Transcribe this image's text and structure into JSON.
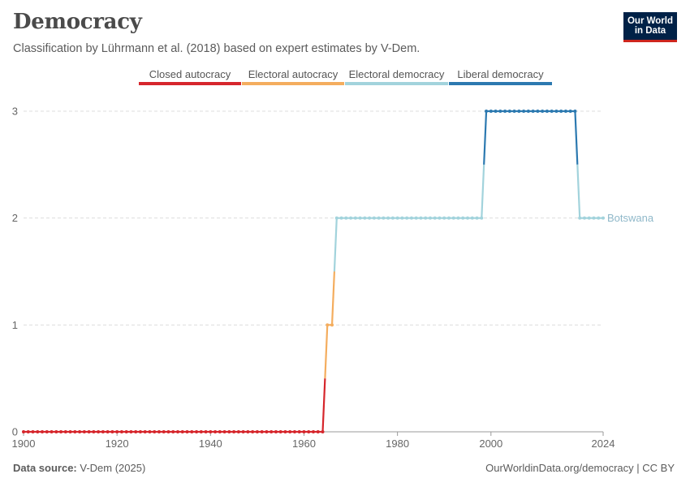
{
  "header": {
    "title": "Democracy",
    "subtitle": "Classification by Lührmann et al. (2018) based on expert estimates by V-Dem.",
    "logo_line1": "Our World",
    "logo_line2": "in Data"
  },
  "footer": {
    "source_label": "Data source:",
    "source_value": "V-Dem (2025)",
    "credit": "OurWorldinData.org/democracy | CC BY"
  },
  "colors": {
    "closed_autocracy": "#d6262c",
    "electoral_autocracy": "#f4ad5e",
    "electoral_democracy": "#a2d3dc",
    "liberal_democracy": "#2c79b0",
    "grid": "#dddddd",
    "axis": "#666666"
  },
  "chart_data": {
    "type": "line",
    "title": "Democracy",
    "subtitle": "Classification by Lührmann et al. (2018) based on expert estimates by V-Dem.",
    "entity": "Botswana",
    "legend": [
      {
        "name": "Closed autocracy",
        "level": 0
      },
      {
        "name": "Electoral autocracy",
        "level": 1
      },
      {
        "name": "Electoral democracy",
        "level": 2
      },
      {
        "name": "Liberal democracy",
        "level": 3
      }
    ],
    "legend_position": "top",
    "x_ticks": [
      1900,
      1920,
      1940,
      1960,
      1980,
      2000,
      2024
    ],
    "y_ticks": [
      0,
      1,
      2,
      3
    ],
    "xlim": [
      1900,
      2024
    ],
    "ylim": [
      0,
      3
    ],
    "grid": "horizontal dashed",
    "series": [
      {
        "name": "Botswana",
        "segments": [
          {
            "start": 1900,
            "end": 1964,
            "value": 0
          },
          {
            "start": 1965,
            "end": 1966,
            "value": 1
          },
          {
            "start": 1967,
            "end": 1998,
            "value": 2
          },
          {
            "start": 1999,
            "end": 2018,
            "value": 3
          },
          {
            "start": 2019,
            "end": 2024,
            "value": 2
          }
        ]
      }
    ]
  }
}
